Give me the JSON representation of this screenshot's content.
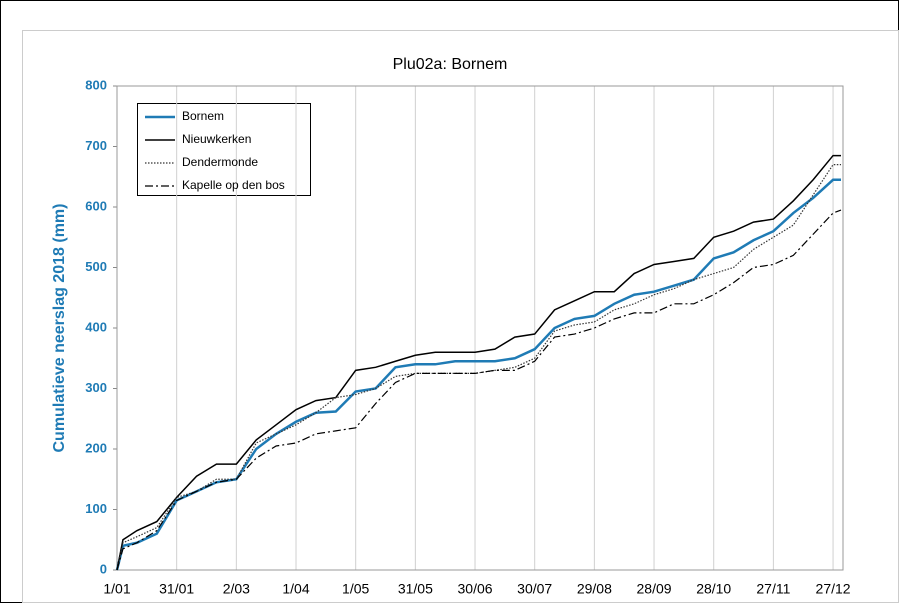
{
  "chart_data": {
    "type": "line",
    "title": "Plu02a: Bornem",
    "y_label": "Cumulatieve neerslag 2018 (mm)",
    "x": [
      0,
      3,
      10,
      20,
      30,
      40,
      50,
      60,
      70,
      80,
      90,
      100,
      110,
      120,
      130,
      140,
      150,
      160,
      170,
      180,
      190,
      200,
      210,
      220,
      230,
      240,
      250,
      260,
      270,
      280,
      290,
      300,
      310,
      320,
      330,
      340,
      350,
      360,
      364
    ],
    "series": [
      {
        "name": "Bornem",
        "color": "#1f7bb5",
        "style": "solid",
        "width": 2.5,
        "values": [
          0,
          40,
          45,
          60,
          115,
          130,
          145,
          150,
          200,
          225,
          245,
          260,
          262,
          295,
          300,
          335,
          340,
          340,
          345,
          345,
          345,
          350,
          365,
          400,
          415,
          420,
          440,
          455,
          460,
          470,
          480,
          515,
          525,
          545,
          560,
          590,
          615,
          645,
          645
        ]
      },
      {
        "name": "Nieuwkerken",
        "color": "#000000",
        "style": "solid",
        "width": 1.5,
        "values": [
          0,
          50,
          65,
          80,
          120,
          155,
          175,
          175,
          215,
          240,
          265,
          280,
          285,
          330,
          335,
          345,
          355,
          360,
          360,
          360,
          365,
          385,
          390,
          430,
          445,
          460,
          460,
          490,
          505,
          510,
          515,
          550,
          560,
          575,
          580,
          610,
          645,
          685,
          685
        ]
      },
      {
        "name": "Dendermonde",
        "color": "#333333",
        "style": "dotted",
        "width": 1.2,
        "values": [
          0,
          45,
          55,
          70,
          120,
          130,
          150,
          150,
          210,
          225,
          240,
          260,
          285,
          290,
          300,
          320,
          325,
          325,
          325,
          325,
          330,
          335,
          350,
          395,
          405,
          410,
          430,
          440,
          455,
          465,
          480,
          490,
          500,
          530,
          550,
          570,
          620,
          670,
          670
        ]
      },
      {
        "name": "Kapelle op den bos",
        "color": "#000000",
        "style": "dashdot",
        "width": 1.2,
        "values": [
          0,
          35,
          45,
          65,
          115,
          130,
          145,
          150,
          185,
          205,
          210,
          225,
          230,
          235,
          275,
          310,
          325,
          325,
          325,
          325,
          330,
          330,
          345,
          385,
          390,
          400,
          415,
          425,
          425,
          440,
          440,
          455,
          475,
          500,
          505,
          520,
          555,
          590,
          595
        ]
      }
    ],
    "xlim": [
      0,
      365
    ],
    "xticks": [
      {
        "value": 0,
        "label": "1/01"
      },
      {
        "value": 30,
        "label": "31/01"
      },
      {
        "value": 60,
        "label": "2/03"
      },
      {
        "value": 90,
        "label": "1/04"
      },
      {
        "value": 120,
        "label": "1/05"
      },
      {
        "value": 150,
        "label": "31/05"
      },
      {
        "value": 180,
        "label": "30/06"
      },
      {
        "value": 210,
        "label": "30/07"
      },
      {
        "value": 240,
        "label": "29/08"
      },
      {
        "value": 270,
        "label": "28/09"
      },
      {
        "value": 300,
        "label": "28/10"
      },
      {
        "value": 330,
        "label": "27/11"
      },
      {
        "value": 360,
        "label": "27/12"
      }
    ],
    "ylim": [
      0,
      800
    ],
    "yticks": [
      0,
      100,
      200,
      300,
      400,
      500,
      600,
      700,
      800
    ],
    "grid": "x"
  }
}
